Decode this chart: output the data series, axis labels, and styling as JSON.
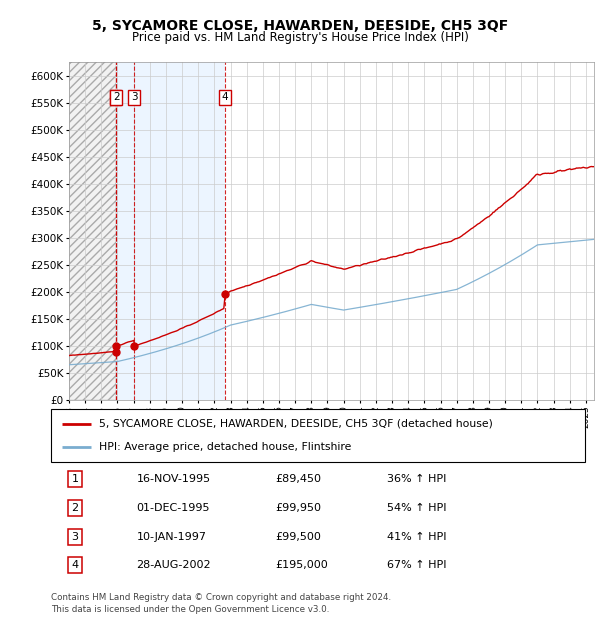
{
  "title": "5, SYCAMORE CLOSE, HAWARDEN, DEESIDE, CH5 3QF",
  "subtitle": "Price paid vs. HM Land Registry's House Price Index (HPI)",
  "ylim": [
    0,
    625000
  ],
  "yticks": [
    0,
    50000,
    100000,
    150000,
    200000,
    250000,
    300000,
    350000,
    400000,
    450000,
    500000,
    550000,
    600000
  ],
  "xlim_start": 1993.0,
  "xlim_end": 2025.5,
  "hatch_end": 1995.88,
  "shade_start": 1995.88,
  "shade_end": 2002.66,
  "sale_points": [
    {
      "date_num": 1995.88,
      "price": 89450,
      "label": "1"
    },
    {
      "date_num": 1995.92,
      "price": 99950,
      "label": "2"
    },
    {
      "date_num": 1997.04,
      "price": 99500,
      "label": "3"
    },
    {
      "date_num": 2002.66,
      "price": 195000,
      "label": "4"
    }
  ],
  "legend_line1": "5, SYCAMORE CLOSE, HAWARDEN, DEESIDE, CH5 3QF (detached house)",
  "legend_line2": "HPI: Average price, detached house, Flintshire",
  "table_rows": [
    {
      "num": "1",
      "date": "16-NOV-1995",
      "price": "£89,450",
      "pct": "36% ↑ HPI"
    },
    {
      "num": "2",
      "date": "01-DEC-1995",
      "price": "£99,950",
      "pct": "54% ↑ HPI"
    },
    {
      "num": "3",
      "date": "10-JAN-1997",
      "price": "£99,500",
      "pct": "41% ↑ HPI"
    },
    {
      "num": "4",
      "date": "28-AUG-2002",
      "price": "£195,000",
      "pct": "67% ↑ HPI"
    }
  ],
  "footnote": "Contains HM Land Registry data © Crown copyright and database right 2024.\nThis data is licensed under the Open Government Licence v3.0.",
  "red_color": "#cc0000",
  "blue_color": "#7aadcf",
  "grid_color": "#cccccc"
}
